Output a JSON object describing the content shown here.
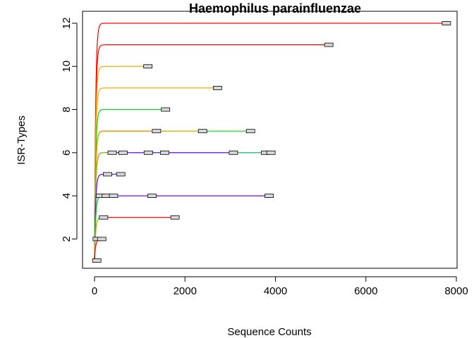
{
  "chart_data": {
    "type": "line",
    "title": "Haemophilus parainfluenzae",
    "xlabel": "Sequence Counts",
    "ylabel": "ISR-Types",
    "xlim": [
      0,
      8000
    ],
    "ylim": [
      1,
      12
    ],
    "xticks": [
      "0",
      "2000",
      "4000",
      "6000",
      "8000"
    ],
    "yticks": [
      "2",
      "4",
      "6",
      "8",
      "10",
      "12"
    ],
    "grid": false,
    "series": [
      {
        "color": "#ff0000",
        "max_y": 12,
        "end_x": 7780,
        "labels_at": [
          7780
        ]
      },
      {
        "color": "#ff0000",
        "max_y": 11,
        "end_x": 5180,
        "labels_at": [
          5180
        ]
      },
      {
        "color": "#ffa500",
        "max_y": 10,
        "end_x": 1180,
        "labels_at": [
          1180
        ]
      },
      {
        "color": "#ffa500",
        "max_y": 9,
        "end_x": 2720,
        "labels_at": [
          2720
        ]
      },
      {
        "color": "#00dd00",
        "max_y": 8,
        "end_x": 1570,
        "labels_at": [
          1570
        ]
      },
      {
        "color": "#00dd00",
        "max_y": 7,
        "end_x": 3450,
        "labels_at": [
          2390,
          3450
        ]
      },
      {
        "color": "#ff0000",
        "max_y": 7,
        "end_x": 1370,
        "labels_at": [
          1370
        ]
      },
      {
        "color": "#ffa500",
        "max_y": 7,
        "end_x": 2390,
        "labels_at": []
      },
      {
        "color": "#00aa66",
        "max_y": 6,
        "end_x": 3900,
        "labels_at": [
          1550,
          3780,
          3900
        ]
      },
      {
        "color": "#7b00ff",
        "max_y": 6,
        "end_x": 3070,
        "labels_at": [
          630,
          1190,
          3070
        ]
      },
      {
        "color": "#88dd00",
        "max_y": 6,
        "end_x": 390,
        "labels_at": [
          390
        ]
      },
      {
        "color": "#7b00ff",
        "max_y": 5,
        "end_x": 580,
        "labels_at": [
          290,
          580
        ]
      },
      {
        "color": "#7b00ff",
        "max_y": 4,
        "end_x": 3860,
        "labels_at": [
          1270,
          3860
        ]
      },
      {
        "color": "#00dd00",
        "max_y": 4,
        "end_x": 420,
        "labels_at": [
          130,
          260,
          420
        ]
      },
      {
        "color": "#ff0000",
        "max_y": 3,
        "end_x": 1780,
        "labels_at": [
          1780
        ]
      },
      {
        "color": "#88dd00",
        "max_y": 3,
        "end_x": 200,
        "labels_at": [
          200
        ]
      },
      {
        "color": "#ff0000",
        "max_y": 2,
        "end_x": 160,
        "labels_at": [
          60,
          160
        ]
      },
      {
        "color": "#ffa500",
        "max_y": 1,
        "end_x": 50,
        "labels_at": [
          50
        ]
      }
    ]
  }
}
